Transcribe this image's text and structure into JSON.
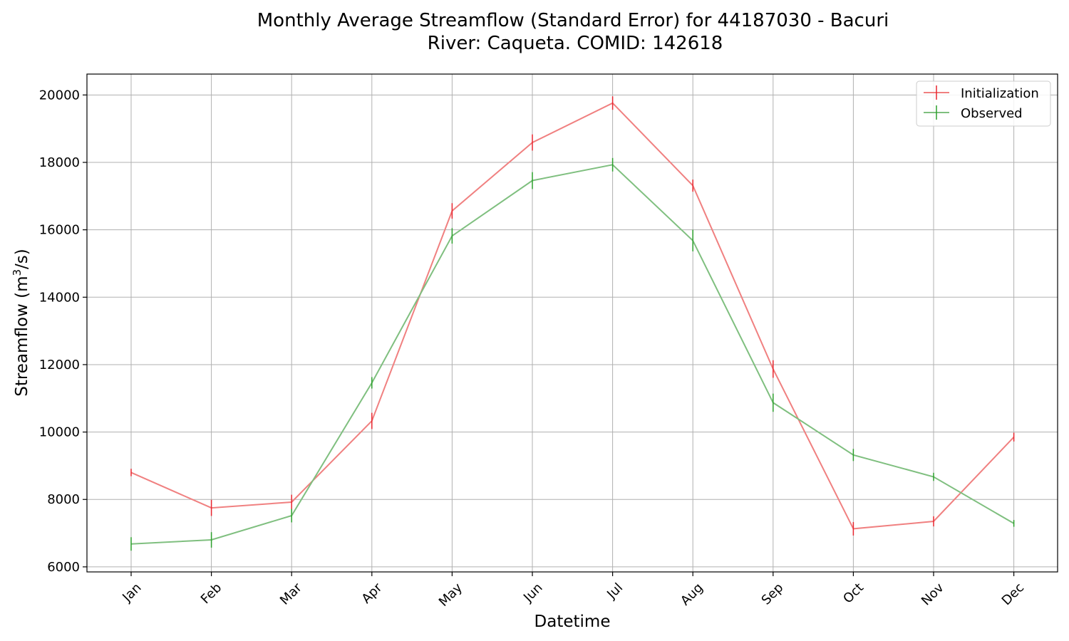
{
  "chart_data": {
    "type": "line",
    "title_line1": "Monthly Average Streamflow (Standard Error) for 44187030 - Bacuri",
    "title_line2": "River: Caqueta. COMID: 142618",
    "xlabel": "Datetime",
    "ylabel_main": "Streamflow (m",
    "ylabel_sup": "3",
    "ylabel_tail": "/s)",
    "categories": [
      "Jan",
      "Feb",
      "Mar",
      "Apr",
      "May",
      "Jun",
      "Jul",
      "Aug",
      "Sep",
      "Oct",
      "Nov",
      "Dec"
    ],
    "ylim": [
      5850,
      20620
    ],
    "yticks": [
      6000,
      8000,
      10000,
      12000,
      14000,
      16000,
      18000,
      20000
    ],
    "grid": true,
    "legend_position": "top-right",
    "series": [
      {
        "name": "Initialization",
        "color": "#f08080",
        "bar_color": "#e8262f",
        "values": [
          8800,
          7750,
          7920,
          10330,
          16560,
          18590,
          19760,
          17310,
          11870,
          7130,
          7350,
          9850
        ],
        "errors": [
          110,
          240,
          220,
          240,
          230,
          240,
          200,
          180,
          260,
          200,
          150,
          130
        ]
      },
      {
        "name": "Observed",
        "color": "#7fbf7f",
        "bar_color": "#2ca02c",
        "values": [
          6680,
          6800,
          7520,
          11460,
          15820,
          17460,
          17930,
          15680,
          10870,
          9320,
          8670,
          7290
        ],
        "errors": [
          200,
          230,
          200,
          170,
          230,
          250,
          200,
          320,
          270,
          180,
          120,
          100
        ]
      }
    ]
  }
}
